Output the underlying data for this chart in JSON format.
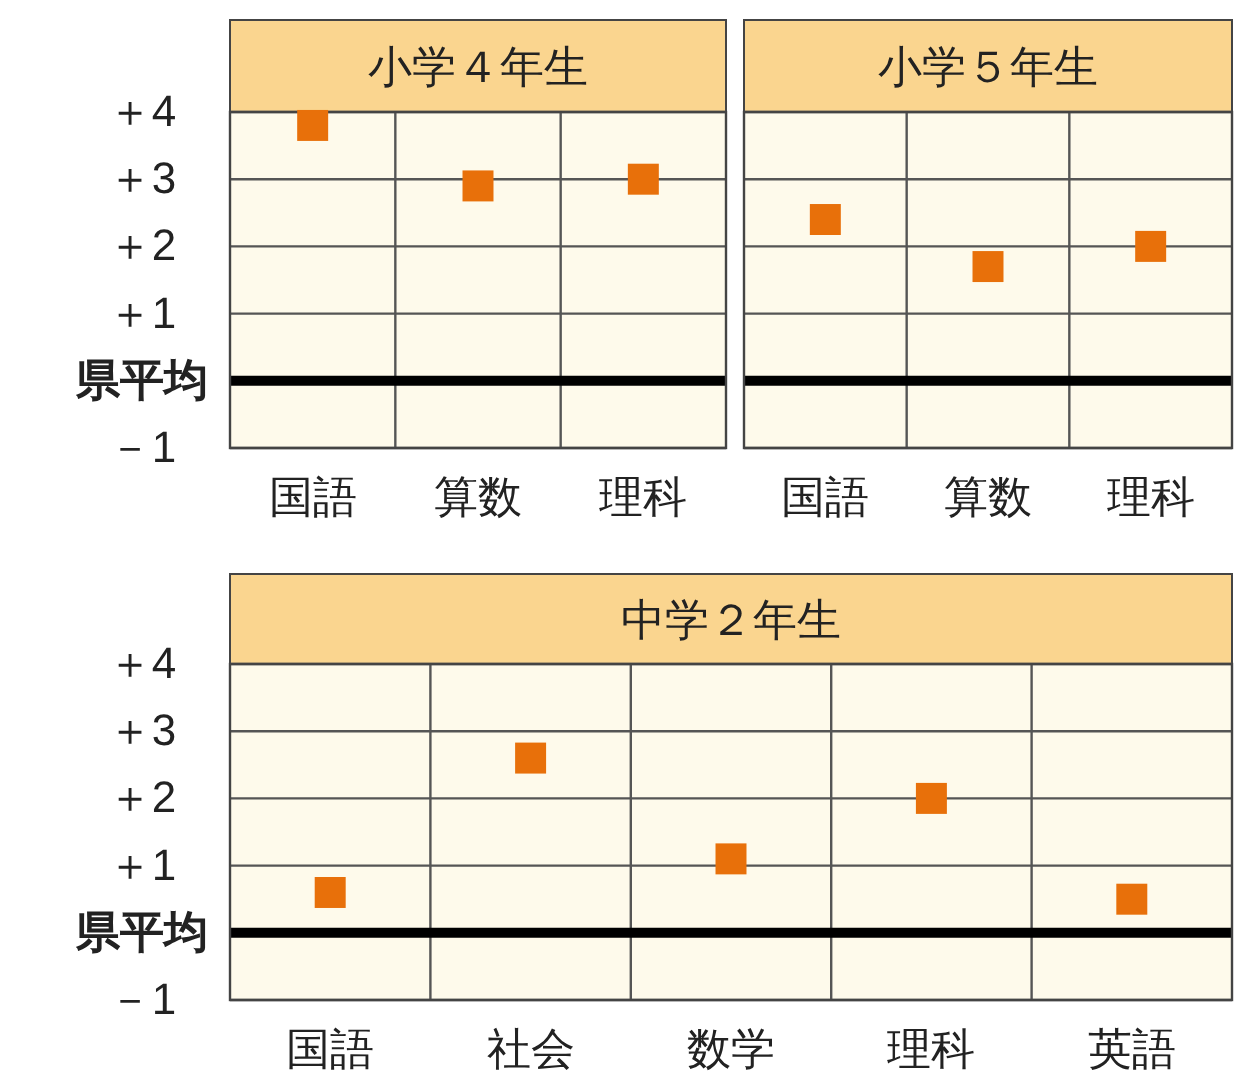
{
  "chart_data": [
    {
      "type": "scatter",
      "title": "小学４年生",
      "categories": [
        "国語",
        "算数",
        "理科"
      ],
      "values": [
        3.8,
        2.9,
        3.0
      ],
      "color": "#e8700a",
      "marker": "square",
      "ylim": [
        -1,
        4
      ],
      "yticks": [
        {
          "value": -1,
          "label": "－1"
        },
        {
          "value": 0,
          "label": "県平均"
        },
        {
          "value": 1,
          "label": "＋1"
        },
        {
          "value": 2,
          "label": "＋2"
        },
        {
          "value": 3,
          "label": "＋3"
        },
        {
          "value": 4,
          "label": "＋4"
        }
      ],
      "grid": true,
      "ref_lines": [
        {
          "axis": "y",
          "value": 0,
          "color": "#000000"
        }
      ]
    },
    {
      "type": "scatter",
      "title": "小学５年生",
      "categories": [
        "国語",
        "算数",
        "理科"
      ],
      "values": [
        2.4,
        1.7,
        2.0
      ],
      "color": "#e8700a",
      "marker": "square",
      "ylim": [
        -1,
        4
      ],
      "tick_labels": "x",
      "grid": true,
      "ref_lines": [
        {
          "axis": "y",
          "value": 0,
          "color": "#000000"
        }
      ]
    },
    {
      "type": "scatter",
      "title": "中学２年生",
      "categories": [
        "国語",
        "社会",
        "数学",
        "理科",
        "英語"
      ],
      "values": [
        0.6,
        2.6,
        1.1,
        2.0,
        0.5
      ],
      "color": "#e8700a",
      "marker": "square",
      "ylim": [
        -1,
        4
      ],
      "yticks": [
        {
          "value": -1,
          "label": "－1"
        },
        {
          "value": 0,
          "label": "県平均"
        },
        {
          "value": 1,
          "label": "＋1"
        },
        {
          "value": 2,
          "label": "＋2"
        },
        {
          "value": 3,
          "label": "＋3"
        },
        {
          "value": 4,
          "label": "＋4"
        }
      ],
      "grid": true,
      "ref_lines": [
        {
          "axis": "y",
          "value": 0,
          "color": "#000000"
        }
      ]
    }
  ]
}
